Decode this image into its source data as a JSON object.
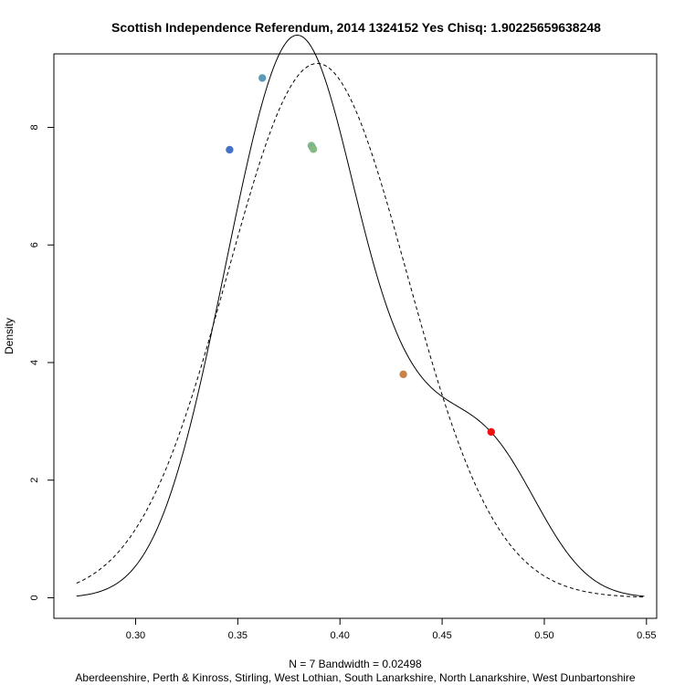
{
  "chart_data": {
    "type": "line",
    "title": "Scottish Independence Referendum, 2014 1324152 Yes Chisq: 1.90225659638248",
    "xlabel": "N = 7   Bandwidth = 0.02498",
    "subtitle": "Aberdeenshire, Perth & Kinross, Stirling, West Lothian, South Lanarkshire, North Lanarkshire, West Dunbartonshire",
    "ylabel": "Density",
    "xlim": [
      0.26,
      0.555
    ],
    "ylim": [
      -0.35,
      9.25
    ],
    "x_ticks": [
      0.3,
      0.35,
      0.4,
      0.45,
      0.5,
      0.55
    ],
    "x_tick_labels": [
      "0.30",
      "0.35",
      "0.40",
      "0.45",
      "0.50",
      "0.55"
    ],
    "y_ticks": [
      0,
      2,
      4,
      6,
      8
    ],
    "y_tick_labels": [
      "0",
      "2",
      "4",
      "6",
      "8"
    ],
    "grid": false,
    "bandwidth": 0.02498,
    "n": 7,
    "series": [
      {
        "style": "solid",
        "kind": "kernel-density",
        "sample": [
          0.346,
          0.362,
          0.386,
          0.3865,
          0.387,
          0.431,
          0.474
        ],
        "x_range": [
          0.2711,
          0.5489
        ]
      },
      {
        "style": "dashed",
        "kind": "normal",
        "mean": 0.3889,
        "sd": 0.0439,
        "x_range": [
          0.2711,
          0.5489
        ]
      }
    ],
    "points": [
      {
        "x": 0.346,
        "y": 7.62,
        "color": "#4472c4"
      },
      {
        "x": 0.362,
        "y": 8.84,
        "color": "#5b9bb5"
      },
      {
        "x": 0.386,
        "y": 7.69,
        "color": "#7fb98a"
      },
      {
        "x": 0.3865,
        "y": 7.66,
        "color": "#76b58c"
      },
      {
        "x": 0.387,
        "y": 7.63,
        "color": "#86bc84"
      },
      {
        "x": 0.431,
        "y": 3.8,
        "color": "#c5824a"
      },
      {
        "x": 0.474,
        "y": 2.82,
        "color": "#ee1111"
      }
    ]
  }
}
